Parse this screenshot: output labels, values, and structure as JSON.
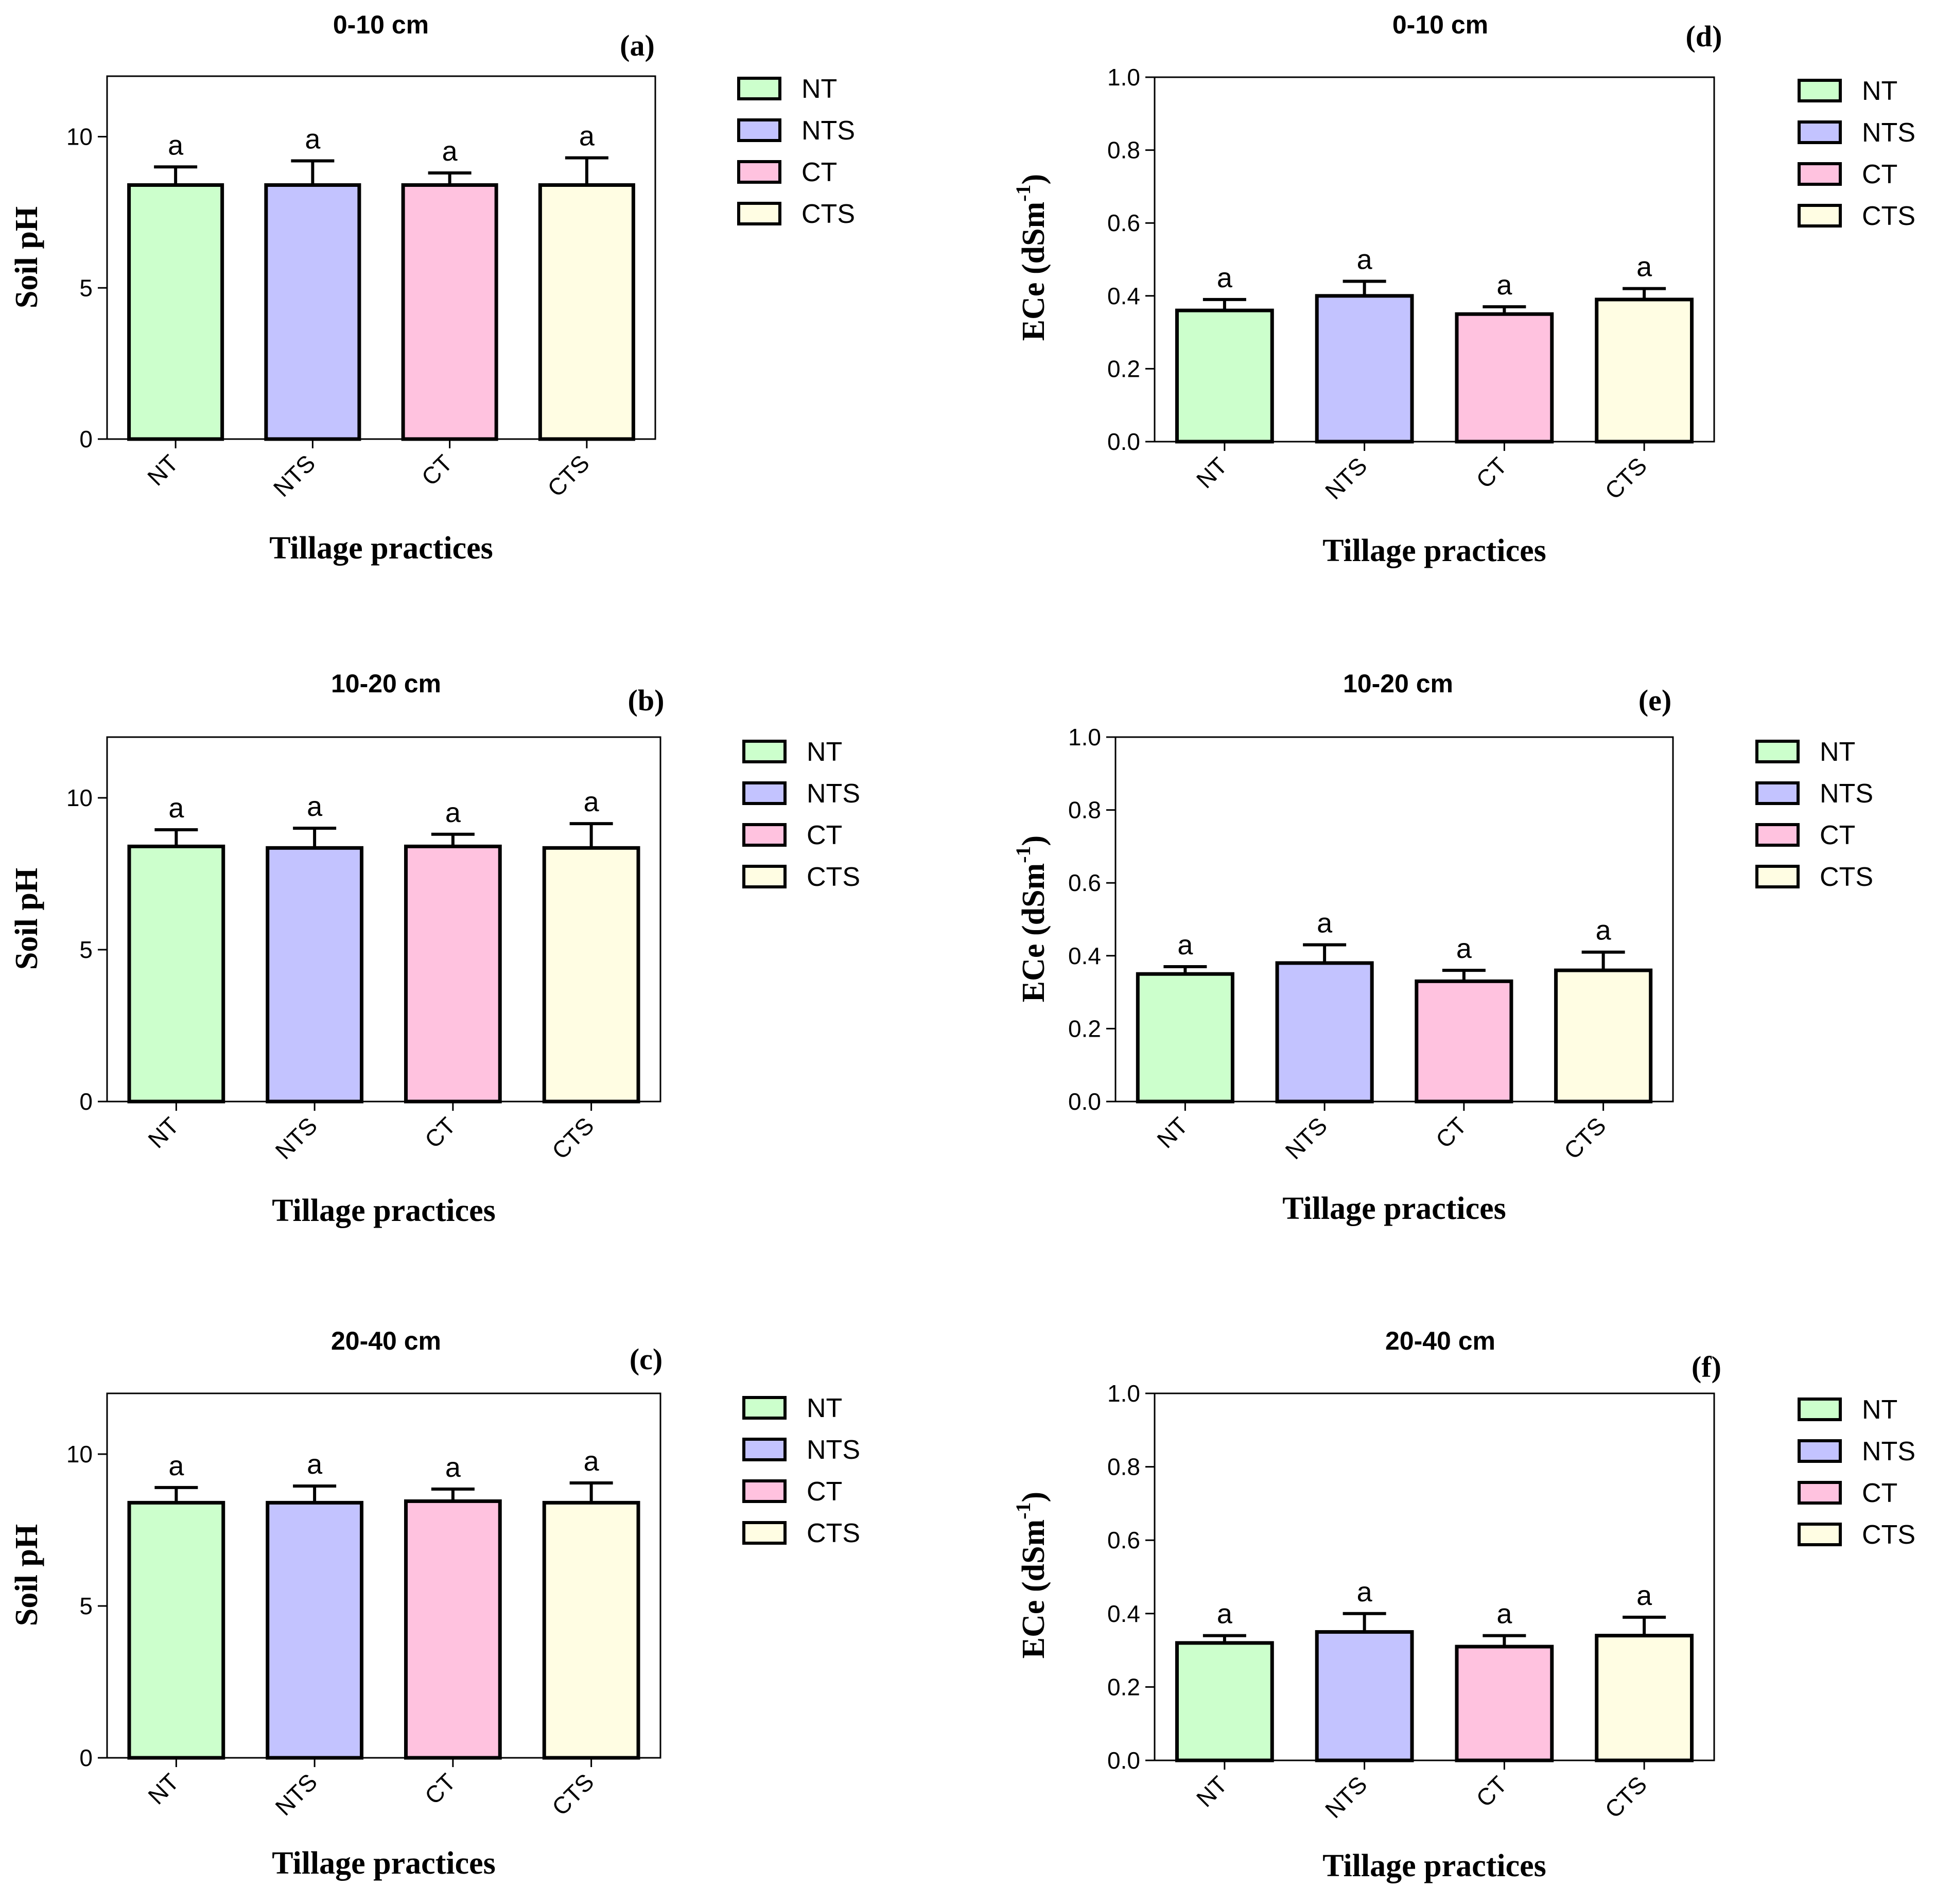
{
  "figure": {
    "categories": [
      "NT",
      "NTS",
      "CT",
      "CTS"
    ],
    "colors": {
      "NT": "#ccffcc",
      "NTS": "#c3c3ff",
      "CT": "#ffc2df",
      "CTS": "#fffde3"
    },
    "legend": {
      "entries": [
        "NT",
        "NTS",
        "CT",
        "CTS"
      ]
    }
  },
  "chart_data": [
    {
      "id": "a",
      "type": "bar",
      "panel_label": "(a)",
      "title": "0-10 cm",
      "xlabel": "Tillage practices",
      "ylabel": "Soil pH",
      "categories": [
        "NT",
        "NTS",
        "CT",
        "CTS"
      ],
      "values": [
        8.4,
        8.4,
        8.4,
        8.4
      ],
      "errors": [
        0.6,
        0.8,
        0.4,
        0.9
      ],
      "significance": [
        "a",
        "a",
        "a",
        "a"
      ],
      "ylim": [
        0,
        12
      ],
      "yticks": [
        0,
        5,
        10
      ],
      "ytick_labels": [
        "0",
        "5",
        "10"
      ],
      "legend": [
        "NT",
        "NTS",
        "CT",
        "CTS"
      ]
    },
    {
      "id": "b",
      "type": "bar",
      "panel_label": "(b)",
      "title": "10-20 cm",
      "xlabel": "Tillage practices",
      "ylabel": "Soil pH",
      "categories": [
        "NT",
        "NTS",
        "CT",
        "CTS"
      ],
      "values": [
        8.4,
        8.35,
        8.4,
        8.35
      ],
      "errors": [
        0.55,
        0.65,
        0.4,
        0.8
      ],
      "significance": [
        "a",
        "a",
        "a",
        "a"
      ],
      "ylim": [
        0,
        12
      ],
      "yticks": [
        0,
        5,
        10
      ],
      "ytick_labels": [
        "0",
        "5",
        "10"
      ],
      "legend": [
        "NT",
        "NTS",
        "CT",
        "CTS"
      ]
    },
    {
      "id": "c",
      "type": "bar",
      "panel_label": "(c)",
      "title": "20-40 cm",
      "xlabel": "Tillage practices",
      "ylabel": "Soil pH",
      "categories": [
        "NT",
        "NTS",
        "CT",
        "CTS"
      ],
      "values": [
        8.4,
        8.4,
        8.45,
        8.4
      ],
      "errors": [
        0.5,
        0.55,
        0.4,
        0.65
      ],
      "significance": [
        "a",
        "a",
        "a",
        "a"
      ],
      "ylim": [
        0,
        12
      ],
      "yticks": [
        0,
        5,
        10
      ],
      "ytick_labels": [
        "0",
        "5",
        "10"
      ],
      "legend": [
        "NT",
        "NTS",
        "CT",
        "CTS"
      ]
    },
    {
      "id": "d",
      "type": "bar",
      "panel_label": "(d)",
      "title": "0-10 cm",
      "xlabel": "Tillage practices",
      "ylabel_main": "ECe (dSm",
      "ylabel_sup": "-1",
      "ylabel_end": ")",
      "categories": [
        "NT",
        "NTS",
        "CT",
        "CTS"
      ],
      "values": [
        0.36,
        0.4,
        0.35,
        0.39
      ],
      "errors": [
        0.03,
        0.04,
        0.02,
        0.03
      ],
      "significance": [
        "a",
        "a",
        "a",
        "a"
      ],
      "ylim": [
        0,
        1.0
      ],
      "yticks": [
        0,
        0.2,
        0.4,
        0.6,
        0.8,
        1.0
      ],
      "ytick_labels": [
        "0.0",
        "0.2",
        "0.4",
        "0.6",
        "0.8",
        "1.0"
      ],
      "legend": [
        "NT",
        "NTS",
        "CT",
        "CTS"
      ]
    },
    {
      "id": "e",
      "type": "bar",
      "panel_label": "(e)",
      "title": "10-20 cm",
      "xlabel": "Tillage practices",
      "ylabel_main": "ECe (dSm",
      "ylabel_sup": "-1",
      "ylabel_end": ")",
      "categories": [
        "NT",
        "NTS",
        "CT",
        "CTS"
      ],
      "values": [
        0.35,
        0.38,
        0.33,
        0.36
      ],
      "errors": [
        0.02,
        0.05,
        0.03,
        0.05
      ],
      "significance": [
        "a",
        "a",
        "a",
        "a"
      ],
      "ylim": [
        0,
        1.0
      ],
      "yticks": [
        0,
        0.2,
        0.4,
        0.6,
        0.8,
        1.0
      ],
      "ytick_labels": [
        "0.0",
        "0.2",
        "0.4",
        "0.6",
        "0.8",
        "1.0"
      ],
      "legend": [
        "NT",
        "NTS",
        "CT",
        "CTS"
      ]
    },
    {
      "id": "f",
      "type": "bar",
      "panel_label": "(f)",
      "title": "20-40 cm",
      "xlabel": "Tillage practices",
      "ylabel_main": "ECe (dSm",
      "ylabel_sup": "-1",
      "ylabel_end": ")",
      "categories": [
        "NT",
        "NTS",
        "CT",
        "CTS"
      ],
      "values": [
        0.32,
        0.35,
        0.31,
        0.34
      ],
      "errors": [
        0.02,
        0.05,
        0.03,
        0.05
      ],
      "significance": [
        "a",
        "a",
        "a",
        "a"
      ],
      "ylim": [
        0,
        1.0
      ],
      "yticks": [
        0,
        0.2,
        0.4,
        0.6,
        0.8,
        1.0
      ],
      "ytick_labels": [
        "0.0",
        "0.2",
        "0.4",
        "0.6",
        "0.8",
        "1.0"
      ],
      "legend": [
        "NT",
        "NTS",
        "CT",
        "CTS"
      ]
    }
  ]
}
